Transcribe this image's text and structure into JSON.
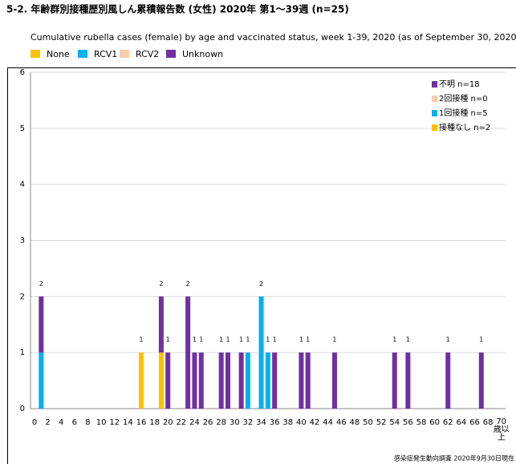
{
  "chart_data": {
    "type": "stacked_bar",
    "title": "5-2. 年齢群別接種歴別風しん累積報告数 (女性)  2020年 第1～39週 (n=25)",
    "subtitle": "Cumulative rubella cases (female) by age and vaccinated status, week 1-39, 2020 (as of September 30, 2020)",
    "source": "感染症発生動向調査 2020年9月30日現在",
    "categories": [
      "0",
      null,
      "2",
      null,
      "4",
      null,
      "6",
      null,
      "8",
      null,
      "10",
      null,
      "12",
      null,
      "14",
      null,
      "16",
      null,
      "18",
      null,
      "20",
      null,
      "22",
      null,
      "24",
      null,
      "26",
      null,
      "28",
      null,
      "30",
      null,
      "32",
      null,
      "34",
      null,
      "36",
      null,
      "38",
      null,
      "40",
      null,
      "42",
      null,
      "44",
      null,
      "46",
      null,
      "48",
      null,
      "50",
      null,
      "52",
      null,
      "54",
      null,
      "56",
      null,
      "58",
      null,
      "60",
      null,
      "62",
      null,
      "64",
      null,
      "66",
      null,
      "68",
      null,
      "70歳以上"
    ],
    "series": [
      {
        "name": "None",
        "legend_label": "接種なし n=2",
        "color": "#ffc000",
        "values": [
          0,
          0,
          0,
          0,
          0,
          0,
          0,
          0,
          0,
          0,
          0,
          0,
          0,
          0,
          0,
          0,
          1,
          0,
          0,
          1,
          0,
          0,
          0,
          0,
          0,
          0,
          0,
          0,
          0,
          0,
          0,
          0,
          0,
          0,
          0,
          0,
          0,
          0,
          0,
          0,
          0,
          0,
          0,
          0,
          0,
          0,
          0,
          0,
          0,
          0,
          0,
          0,
          0,
          0,
          0,
          0,
          0,
          0,
          0,
          0,
          0,
          0,
          0,
          0,
          0,
          0,
          0,
          0,
          0,
          0,
          0
        ]
      },
      {
        "name": "RCV1",
        "legend_label": "1回接種 n=5",
        "color": "#00b0f0",
        "values": [
          0,
          1,
          0,
          0,
          0,
          0,
          0,
          0,
          0,
          0,
          0,
          0,
          0,
          0,
          0,
          0,
          0,
          0,
          0,
          0,
          0,
          0,
          0,
          0,
          0,
          0,
          0,
          0,
          0,
          0,
          0,
          0,
          1,
          0,
          2,
          1,
          0,
          0,
          0,
          0,
          0,
          0,
          0,
          0,
          0,
          0,
          0,
          0,
          0,
          0,
          0,
          0,
          0,
          0,
          0,
          0,
          0,
          0,
          0,
          0,
          0,
          0,
          0,
          0,
          0,
          0,
          0,
          0,
          0,
          0,
          0
        ]
      },
      {
        "name": "RCV2",
        "legend_label": "2回接種 n=0",
        "color": "#f8cbad",
        "values": [
          0,
          0,
          0,
          0,
          0,
          0,
          0,
          0,
          0,
          0,
          0,
          0,
          0,
          0,
          0,
          0,
          0,
          0,
          0,
          0,
          0,
          0,
          0,
          0,
          0,
          0,
          0,
          0,
          0,
          0,
          0,
          0,
          0,
          0,
          0,
          0,
          0,
          0,
          0,
          0,
          0,
          0,
          0,
          0,
          0,
          0,
          0,
          0,
          0,
          0,
          0,
          0,
          0,
          0,
          0,
          0,
          0,
          0,
          0,
          0,
          0,
          0,
          0,
          0,
          0,
          0,
          0,
          0,
          0,
          0,
          0
        ]
      },
      {
        "name": "Unknown",
        "legend_label": "不明 n=18",
        "color": "#7030a0",
        "values": [
          0,
          1,
          0,
          0,
          0,
          0,
          0,
          0,
          0,
          0,
          0,
          0,
          0,
          0,
          0,
          0,
          0,
          0,
          0,
          1,
          1,
          0,
          0,
          2,
          1,
          1,
          0,
          0,
          1,
          1,
          0,
          1,
          0,
          0,
          0,
          0,
          1,
          0,
          0,
          0,
          1,
          1,
          0,
          0,
          0,
          1,
          0,
          0,
          0,
          0,
          0,
          0,
          0,
          0,
          1,
          0,
          1,
          0,
          0,
          0,
          0,
          0,
          1,
          0,
          0,
          0,
          0,
          1,
          0,
          0,
          0
        ]
      }
    ],
    "totals": [
      null,
      2,
      null,
      null,
      null,
      null,
      null,
      null,
      null,
      null,
      null,
      null,
      null,
      null,
      null,
      null,
      1,
      null,
      null,
      2,
      1,
      null,
      null,
      2,
      1,
      1,
      null,
      null,
      1,
      1,
      null,
      1,
      1,
      null,
      2,
      1,
      1,
      null,
      null,
      null,
      1,
      1,
      null,
      null,
      null,
      1,
      null,
      null,
      null,
      null,
      null,
      null,
      null,
      null,
      1,
      null,
      1,
      null,
      null,
      null,
      null,
      null,
      1,
      null,
      null,
      null,
      null,
      1,
      null,
      null,
      null
    ],
    "ylim": [
      0,
      6
    ],
    "yticks": [
      0,
      1,
      2,
      3,
      4,
      5,
      6
    ],
    "grid": true
  }
}
